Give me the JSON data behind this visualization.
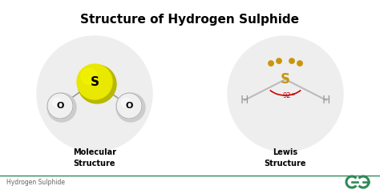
{
  "title": "Structure of Hydrogen Sulphide",
  "title_fontsize": 11,
  "title_fontweight": "bold",
  "bg_color": "#ffffff",
  "bg_circle_color": "#eeeeee",
  "label1": "Molecular\nStructure",
  "label2": "Lewis\nStructure",
  "label_fontsize": 7,
  "footer_text": "Hydrogen Sulphide",
  "footer_fontsize": 5.5,
  "footer_color": "#666666",
  "bar_color": "#2e8b57",
  "s_yellow": "#e8e800",
  "s_yellow_dark": "#b8b800",
  "s_yellow_light": "#f5f500",
  "o_white": "#f0f0f0",
  "o_stroke": "#aaaaaa",
  "o_shadow": "#cccccc",
  "bond_color": "#999999",
  "lone_pair_color": "#c8960c",
  "angle_color": "#cc0000",
  "h_color": "#999999",
  "s_lewis_color": "#c8960c"
}
